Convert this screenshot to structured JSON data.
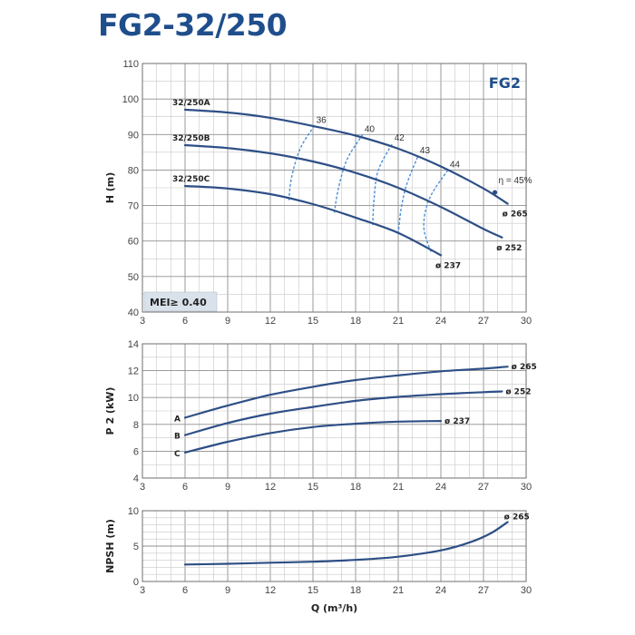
{
  "page_title": "FG2-32/250",
  "colors": {
    "title": "#1f4e8c",
    "curve": "#2e4f86",
    "efficiency": "#4a90d9",
    "grid_minor": "#c7c7c7",
    "grid_major": "#8f8f8f",
    "badge_bg": "#d9e1ea"
  },
  "chart_data": [
    {
      "name": "head",
      "type": "line",
      "xlabel": "",
      "ylabel": "H (m)",
      "xlim": [
        3,
        30
      ],
      "ylim": [
        40,
        110
      ],
      "x_ticks": [
        "3",
        "6",
        "9",
        "12",
        "15",
        "18",
        "21",
        "24",
        "27",
        "30"
      ],
      "y_ticks": [
        "40",
        "50",
        "60",
        "70",
        "80",
        "90",
        "100",
        "110"
      ],
      "badge": "FG2",
      "annotation": "MEI≥ 0.40",
      "series": [
        {
          "name": "32/250A",
          "end_label": "ø 265",
          "points": [
            [
              6,
              97
            ],
            [
              9,
              96.2
            ],
            [
              12,
              94.7
            ],
            [
              15,
              92.4
            ],
            [
              18,
              89.7
            ],
            [
              21,
              86
            ],
            [
              24,
              81
            ],
            [
              27,
              74.8
            ],
            [
              28.7,
              70.5
            ]
          ]
        },
        {
          "name": "32/250B",
          "end_label": "ø 252",
          "points": [
            [
              6,
              87
            ],
            [
              9,
              86.2
            ],
            [
              12,
              84.7
            ],
            [
              15,
              82.4
            ],
            [
              18,
              79.2
            ],
            [
              21,
              75
            ],
            [
              24,
              69.6
            ],
            [
              27,
              63.4
            ],
            [
              28.3,
              61
            ]
          ]
        },
        {
          "name": "32/250C",
          "end_label": "ø 237",
          "points": [
            [
              6,
              75.5
            ],
            [
              9,
              74.8
            ],
            [
              12,
              73.2
            ],
            [
              15,
              70.4
            ],
            [
              18,
              66.6
            ],
            [
              21,
              62.3
            ],
            [
              24,
              56
            ]
          ]
        }
      ],
      "efficiency_curves": [
        {
          "label": "36",
          "points": [
            [
              13.3,
              71.5
            ],
            [
              13.5,
              78
            ],
            [
              14.1,
              86
            ],
            [
              15.1,
              92.5
            ]
          ]
        },
        {
          "label": "40",
          "points": [
            [
              16.5,
              68
            ],
            [
              16.8,
              75
            ],
            [
              17.4,
              83
            ],
            [
              18.5,
              90
            ]
          ]
        },
        {
          "label": "42",
          "points": [
            [
              19.2,
              64.5
            ],
            [
              19.3,
              72
            ],
            [
              19.6,
              80
            ],
            [
              20.6,
              87.5
            ]
          ]
        },
        {
          "label": "43",
          "points": [
            [
              21,
              62
            ],
            [
              21.2,
              69
            ],
            [
              21.6,
              76
            ],
            [
              22.4,
              84
            ]
          ]
        },
        {
          "label": "44",
          "points": [
            [
              23.3,
              57
            ],
            [
              22.8,
              64
            ],
            [
              23.2,
              72
            ],
            [
              24.5,
              80
            ]
          ]
        }
      ],
      "efficiency_label": "η = 45%",
      "efficiency_marker": [
        27.8,
        73.7
      ]
    },
    {
      "name": "power",
      "type": "line",
      "xlabel": "",
      "ylabel": "P 2 (kW)",
      "xlim": [
        3,
        30
      ],
      "ylim": [
        4,
        14
      ],
      "x_ticks": [
        "3",
        "6",
        "9",
        "12",
        "15",
        "18",
        "21",
        "24",
        "27",
        "30"
      ],
      "y_ticks": [
        "4",
        "6",
        "8",
        "10",
        "12",
        "14"
      ],
      "series": [
        {
          "name": "A",
          "end_label": "ø 265",
          "points": [
            [
              6,
              8.5
            ],
            [
              9,
              9.4
            ],
            [
              12,
              10.2
            ],
            [
              15,
              10.8
            ],
            [
              18,
              11.3
            ],
            [
              21,
              11.65
            ],
            [
              24,
              11.95
            ],
            [
              27,
              12.15
            ],
            [
              28.7,
              12.3
            ]
          ]
        },
        {
          "name": "B",
          "end_label": "ø 252",
          "points": [
            [
              6,
              7.2
            ],
            [
              9,
              8.1
            ],
            [
              12,
              8.8
            ],
            [
              15,
              9.3
            ],
            [
              18,
              9.75
            ],
            [
              21,
              10.05
            ],
            [
              24,
              10.25
            ],
            [
              27,
              10.4
            ],
            [
              28.3,
              10.45
            ]
          ]
        },
        {
          "name": "C",
          "end_label": "ø 237",
          "points": [
            [
              6,
              5.9
            ],
            [
              9,
              6.7
            ],
            [
              12,
              7.35
            ],
            [
              15,
              7.8
            ],
            [
              18,
              8.05
            ],
            [
              21,
              8.2
            ],
            [
              24,
              8.25
            ]
          ]
        }
      ]
    },
    {
      "name": "npsh",
      "type": "line",
      "xlabel": "Q (m³/h)",
      "ylabel": "NPSH (m)",
      "xlim": [
        3,
        30
      ],
      "ylim": [
        0,
        10
      ],
      "x_ticks": [
        "3",
        "6",
        "9",
        "12",
        "15",
        "18",
        "21",
        "24",
        "27",
        "30"
      ],
      "y_ticks": [
        "0",
        "5",
        "10"
      ],
      "series": [
        {
          "name": "",
          "end_label": "ø 265",
          "points": [
            [
              6,
              2.4
            ],
            [
              9,
              2.5
            ],
            [
              12,
              2.65
            ],
            [
              15,
              2.8
            ],
            [
              18,
              3.05
            ],
            [
              21,
              3.5
            ],
            [
              24,
              4.4
            ],
            [
              26,
              5.5
            ],
            [
              27.5,
              6.8
            ],
            [
              28.7,
              8.4
            ]
          ]
        }
      ]
    }
  ]
}
